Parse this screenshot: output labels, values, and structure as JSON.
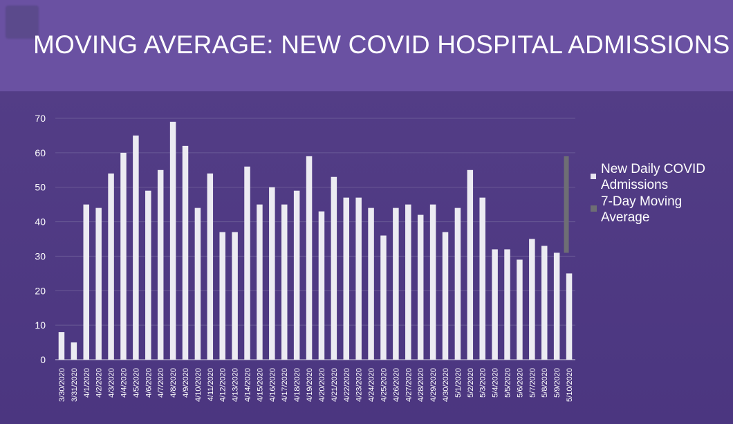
{
  "page": {
    "title": "MOVING AVERAGE: NEW COVID HOSPITAL ADMISSIONS"
  },
  "colors": {
    "header_bg": "#6a51a2",
    "chart_bg": "#4f3a82",
    "bar": "#ecebf2",
    "moving_avg": "#6e6e74",
    "gridline": "#6a5a96",
    "text": "#ffffff"
  },
  "legend": {
    "items": [
      {
        "label_line1": "New Daily COVID",
        "label_line2": "Admissions",
        "swatch": "bar"
      },
      {
        "label_line1": "7-Day Moving",
        "label_line2": "Average",
        "swatch": "line"
      }
    ]
  },
  "chart_data": {
    "type": "bar",
    "title": "MOVING AVERAGE: NEW COVID HOSPITAL ADMISSIONS",
    "xlabel": "",
    "ylabel": "",
    "ylim": [
      0,
      70
    ],
    "yticks": [
      0,
      10,
      20,
      30,
      40,
      50,
      60,
      70
    ],
    "grid": true,
    "legend_position": "right",
    "categories": [
      "3/30/2020",
      "3/31/2020",
      "4/1/2020",
      "4/2/2020",
      "4/3/2020",
      "4/4/2020",
      "4/5/2020",
      "4/6/2020",
      "4/7/2020",
      "4/8/2020",
      "4/9/2020",
      "4/10/2020",
      "4/11/2020",
      "4/12/2020",
      "4/13/2020",
      "4/14/2020",
      "4/15/2020",
      "4/16/2020",
      "4/17/2020",
      "4/18/2020",
      "4/19/2020",
      "4/20/2020",
      "4/21/2020",
      "4/22/2020",
      "4/23/2020",
      "4/24/2020",
      "4/25/2020",
      "4/26/2020",
      "4/27/2020",
      "4/28/2020",
      "4/29/2020",
      "4/30/2020",
      "5/1/2020",
      "5/2/2020",
      "5/3/2020",
      "5/4/2020",
      "5/5/2020",
      "5/6/2020",
      "5/7/2020",
      "5/8/2020",
      "5/9/2020",
      "5/10/2020"
    ],
    "series": [
      {
        "name": "New Daily COVID Admissions",
        "values": [
          8,
          5,
          45,
          44,
          54,
          60,
          65,
          49,
          55,
          69,
          62,
          44,
          54,
          37,
          37,
          56,
          45,
          50,
          45,
          49,
          59,
          43,
          53,
          47,
          47,
          44,
          36,
          44,
          45,
          42,
          45,
          37,
          44,
          55,
          47,
          32,
          32,
          29,
          35,
          33,
          31,
          25
        ]
      },
      {
        "name": "7-Day Moving Average",
        "type": "line",
        "x": [
          "5/10/2020",
          "5/10/2020"
        ],
        "values": [
          31,
          59
        ]
      }
    ]
  }
}
